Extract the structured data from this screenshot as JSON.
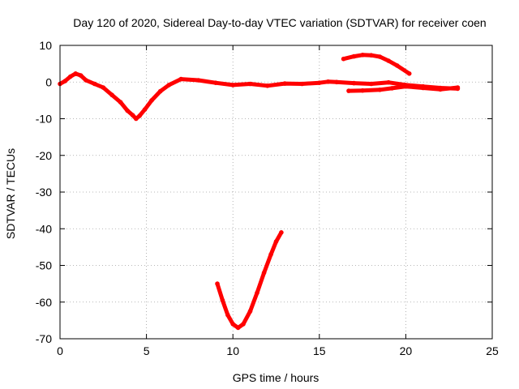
{
  "chart_data": {
    "type": "line",
    "title": "Day 120 of 2020, Sidereal Day-to-day VTEC variation (SDTVAR) for receiver coen",
    "xlabel": "GPS time / hours",
    "ylabel": "SDTVAR / TECUs",
    "xlim": [
      0,
      25
    ],
    "ylim": [
      -70,
      10
    ],
    "xticks": [
      0,
      5,
      10,
      15,
      20,
      25
    ],
    "yticks": [
      10,
      0,
      -10,
      -20,
      -30,
      -40,
      -50,
      -60,
      -70
    ],
    "grid": true,
    "series": [
      {
        "name": "main-trace",
        "color": "#ff0000",
        "x": [
          0.0,
          0.3,
          0.6,
          0.9,
          1.2,
          1.5,
          2.0,
          2.5,
          3.0,
          3.5,
          3.9,
          4.2,
          4.4,
          4.6,
          4.9,
          5.3,
          5.8,
          6.3,
          7.0,
          8.0,
          9.0,
          10.0,
          11.0,
          12.0,
          13.0,
          14.0,
          15.0,
          15.5,
          16.0,
          17.0,
          18.0,
          19.0,
          20.0,
          21.0,
          22.0,
          23.0
        ],
        "y": [
          -0.5,
          0.3,
          1.5,
          2.3,
          1.8,
          0.5,
          -0.5,
          -1.5,
          -3.5,
          -5.5,
          -7.8,
          -9.0,
          -10.0,
          -9.2,
          -7.5,
          -5.0,
          -2.5,
          -0.8,
          0.8,
          0.5,
          -0.2,
          -0.8,
          -0.5,
          -1.0,
          -0.4,
          -0.5,
          -0.2,
          0.1,
          0.0,
          -0.3,
          -0.5,
          -0.1,
          -0.8,
          -1.2,
          -1.6,
          -1.8
        ]
      },
      {
        "name": "upper-arc",
        "color": "#ff0000",
        "x": [
          16.4,
          17.0,
          17.5,
          18.0,
          18.5,
          19.0,
          19.5,
          20.2
        ],
        "y": [
          6.3,
          7.0,
          7.4,
          7.3,
          6.9,
          5.8,
          4.5,
          2.3
        ]
      },
      {
        "name": "lower-branch",
        "color": "#ff0000",
        "x": [
          16.7,
          17.5,
          18.5,
          19.2,
          20.0,
          21.0,
          22.0,
          23.0
        ],
        "y": [
          -2.4,
          -2.3,
          -2.1,
          -1.7,
          -1.2,
          -1.6,
          -2.0,
          -1.5
        ]
      },
      {
        "name": "dip-curve",
        "color": "#ff0000",
        "x": [
          9.1,
          9.4,
          9.7,
          10.0,
          10.3,
          10.6,
          11.0,
          11.4,
          11.8,
          12.2,
          12.5,
          12.8
        ],
        "y": [
          -55.0,
          -59.5,
          -63.5,
          -66.0,
          -67.0,
          -66.0,
          -62.5,
          -57.5,
          -52.0,
          -47.0,
          -43.5,
          -41.0
        ]
      }
    ]
  }
}
